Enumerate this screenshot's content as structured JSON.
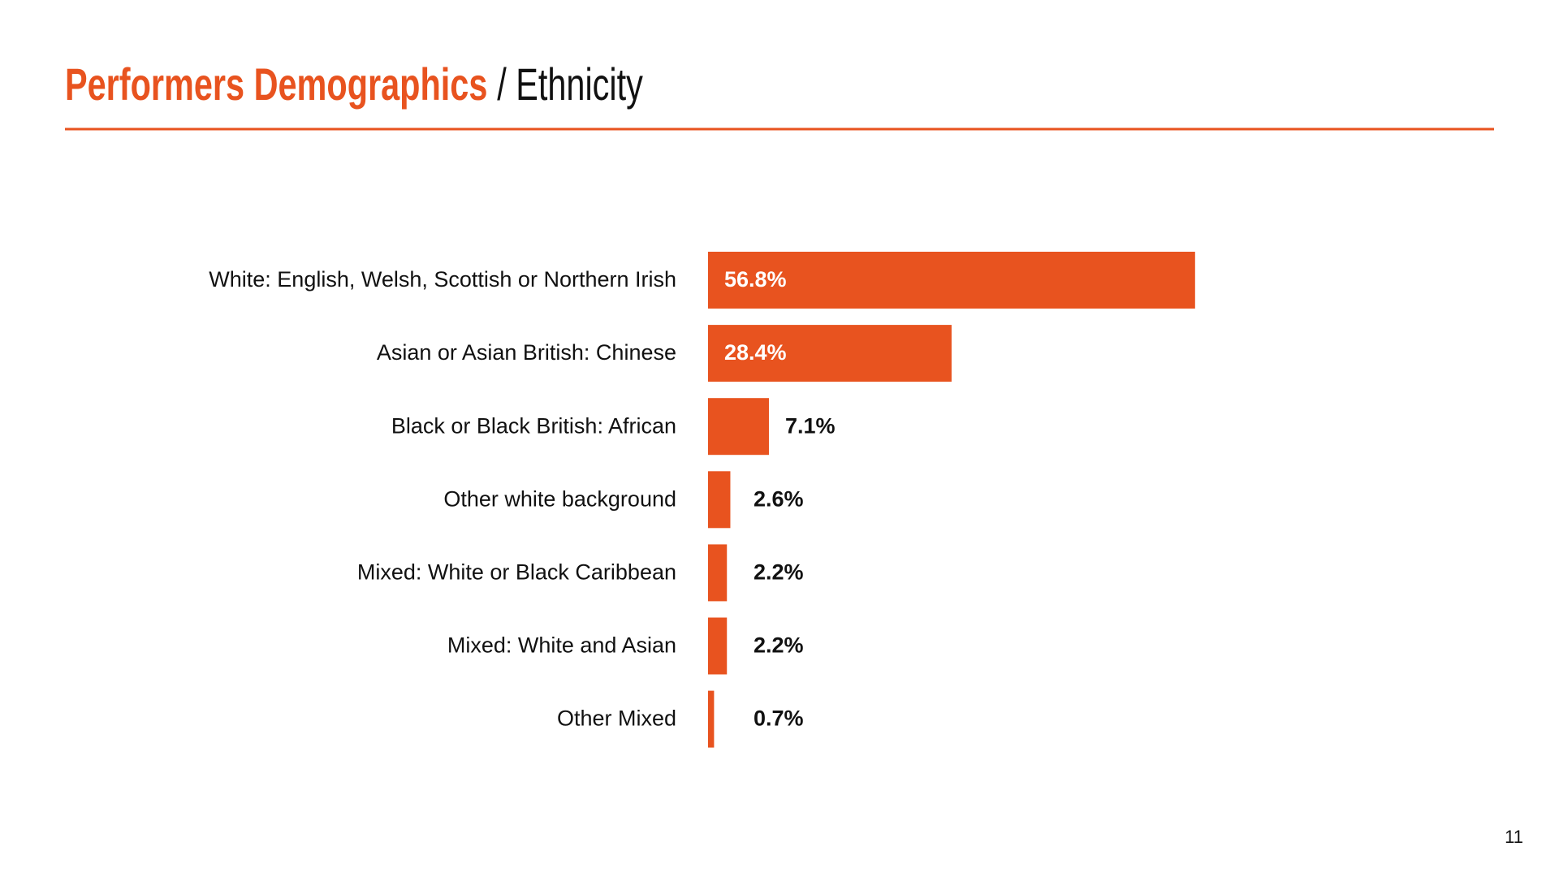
{
  "chart_data": {
    "type": "bar",
    "orientation": "horizontal",
    "title": "Performers Demographics",
    "subtitle": "/ Ethnicity",
    "categories": [
      "White: English, Welsh, Scottish or Northern Irish",
      "Asian or Asian British: Chinese",
      "Black or Black British: African",
      "Other white background",
      "Mixed: White or Black Caribbean",
      "Mixed: White and Asian",
      "Other Mixed"
    ],
    "values": [
      56.8,
      28.4,
      7.1,
      2.6,
      2.2,
      2.2,
      0.7
    ],
    "value_labels": [
      "56.8%",
      "28.4%",
      "7.1%",
      "2.6%",
      "2.2%",
      "2.2%",
      "0.7%"
    ],
    "color": "#e8531f"
  },
  "page_number": "11"
}
